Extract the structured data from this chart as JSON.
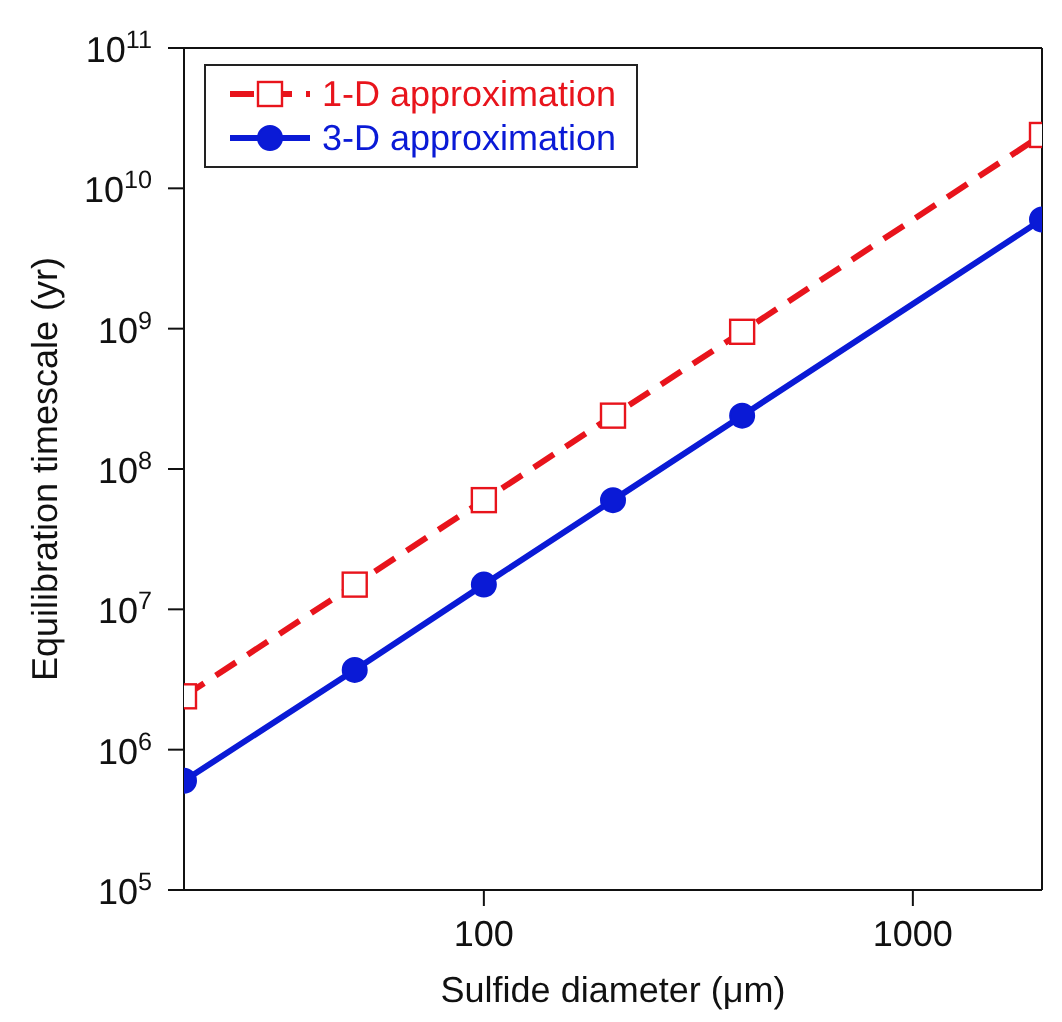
{
  "chart_data": {
    "type": "line",
    "xlabel": "Sulfide diameter (μm)",
    "ylabel": "Equilibration timescale (yr)",
    "log": "xy",
    "x": [
      20,
      50,
      100,
      200,
      400,
      2000
    ],
    "xlim": [
      20,
      2000
    ],
    "xticks": [
      100,
      1000
    ],
    "ylim": [
      100000,
      100000000000
    ],
    "yticks": [
      {
        "value": 100000,
        "label": "10$^{5}$"
      },
      {
        "value": 1000000,
        "label": "10$^{6}$"
      },
      {
        "value": 10000000,
        "label": "10$^{7}$"
      },
      {
        "value": 100000000,
        "label": "10$^{8}$"
      },
      {
        "value": 1000000000,
        "label": "10$^{9}$"
      },
      {
        "value": 10000000000,
        "label": "10$^{10}$"
      },
      {
        "value": 100000000000,
        "label": "10$^{11}$"
      }
    ],
    "grid": false,
    "legend": "top left",
    "series": [
      {
        "name": "1-D approximation",
        "color": "#e8141c",
        "marker": "square",
        "line_style": "dashed",
        "values": [
          2400000,
          15000000,
          60000000,
          240000000,
          950000000,
          24000000000
        ]
      },
      {
        "name": "3-D approximation",
        "color": "#0a1ad6",
        "marker": "circle",
        "line_style": "solid",
        "values": [
          600000,
          3700000,
          15000000,
          60000000,
          240000000,
          6000000000
        ]
      }
    ]
  }
}
